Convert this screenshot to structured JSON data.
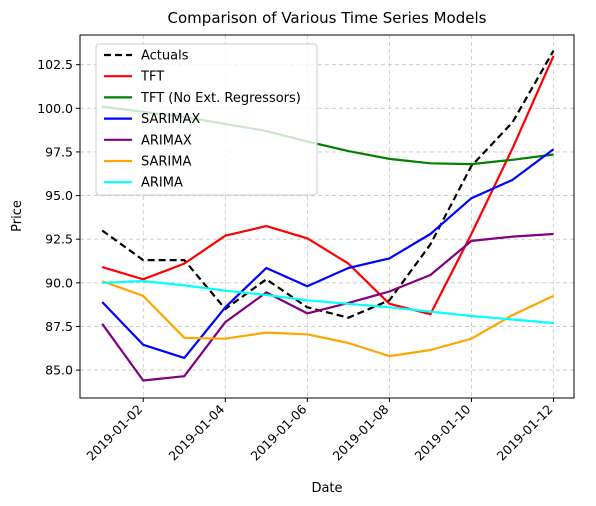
{
  "chart_data": {
    "type": "line",
    "title": "Comparison of Various Time Series Models",
    "xlabel": "Date",
    "ylabel": "Price",
    "x": [
      "2019-01-01",
      "2019-01-02",
      "2019-01-03",
      "2019-01-04",
      "2019-01-05",
      "2019-01-06",
      "2019-01-07",
      "2019-01-08",
      "2019-01-09",
      "2019-01-10",
      "2019-01-11",
      "2019-01-12"
    ],
    "xticks": [
      "2019-01-02",
      "2019-01-04",
      "2019-01-06",
      "2019-01-08",
      "2019-01-10",
      "2019-01-12"
    ],
    "yticks": [
      85.0,
      87.5,
      90.0,
      92.5,
      95.0,
      97.5,
      100.0,
      102.5
    ],
    "ytick_labels": [
      "85.0",
      "87.5",
      "90.0",
      "92.5",
      "95.0",
      "97.5",
      "100.0",
      "102.5"
    ],
    "ylim": [
      83.4,
      104.2
    ],
    "xlim": [
      "2018-12-31T11:00",
      "2019-01-12T12:00"
    ],
    "grid": true,
    "legend_position": "top-left",
    "series": [
      {
        "name": "Actuals",
        "color": "#000000",
        "dashed": true,
        "values": [
          93.0,
          91.3,
          91.3,
          88.5,
          90.2,
          88.6,
          88.0,
          89.0,
          92.2,
          96.7,
          99.2,
          103.3
        ]
      },
      {
        "name": "TFT",
        "color": "#ff0000",
        "dashed": false,
        "values": [
          90.9,
          90.2,
          91.1,
          92.7,
          93.25,
          92.55,
          91.1,
          88.8,
          88.2,
          92.8,
          97.7,
          103.0
        ]
      },
      {
        "name": "TFT (No Ext. Regressors)",
        "color": "#008000",
        "dashed": false,
        "values": [
          100.1,
          99.8,
          99.5,
          99.1,
          98.7,
          98.1,
          97.55,
          97.1,
          96.85,
          96.8,
          97.05,
          97.35
        ]
      },
      {
        "name": "SARIMAX",
        "color": "#0000ff",
        "dashed": false,
        "values": [
          88.9,
          86.45,
          85.7,
          88.6,
          90.85,
          89.8,
          90.85,
          91.4,
          92.8,
          94.85,
          95.9,
          97.65
        ]
      },
      {
        "name": "ARIMAX",
        "color": "#800080",
        "dashed": false,
        "values": [
          87.65,
          84.4,
          84.65,
          87.75,
          89.45,
          88.25,
          88.85,
          89.5,
          90.45,
          92.4,
          92.65,
          92.8
        ]
      },
      {
        "name": "SARIMA",
        "color": "#ffa500",
        "dashed": false,
        "values": [
          90.1,
          89.25,
          86.85,
          86.8,
          87.15,
          87.05,
          86.55,
          85.8,
          86.15,
          86.8,
          88.15,
          89.25
        ]
      },
      {
        "name": "ARIMA",
        "color": "#00ffff",
        "dashed": false,
        "values": [
          90.0,
          90.1,
          89.85,
          89.55,
          89.3,
          89.0,
          88.8,
          88.6,
          88.35,
          88.1,
          87.9,
          87.7
        ]
      }
    ]
  }
}
